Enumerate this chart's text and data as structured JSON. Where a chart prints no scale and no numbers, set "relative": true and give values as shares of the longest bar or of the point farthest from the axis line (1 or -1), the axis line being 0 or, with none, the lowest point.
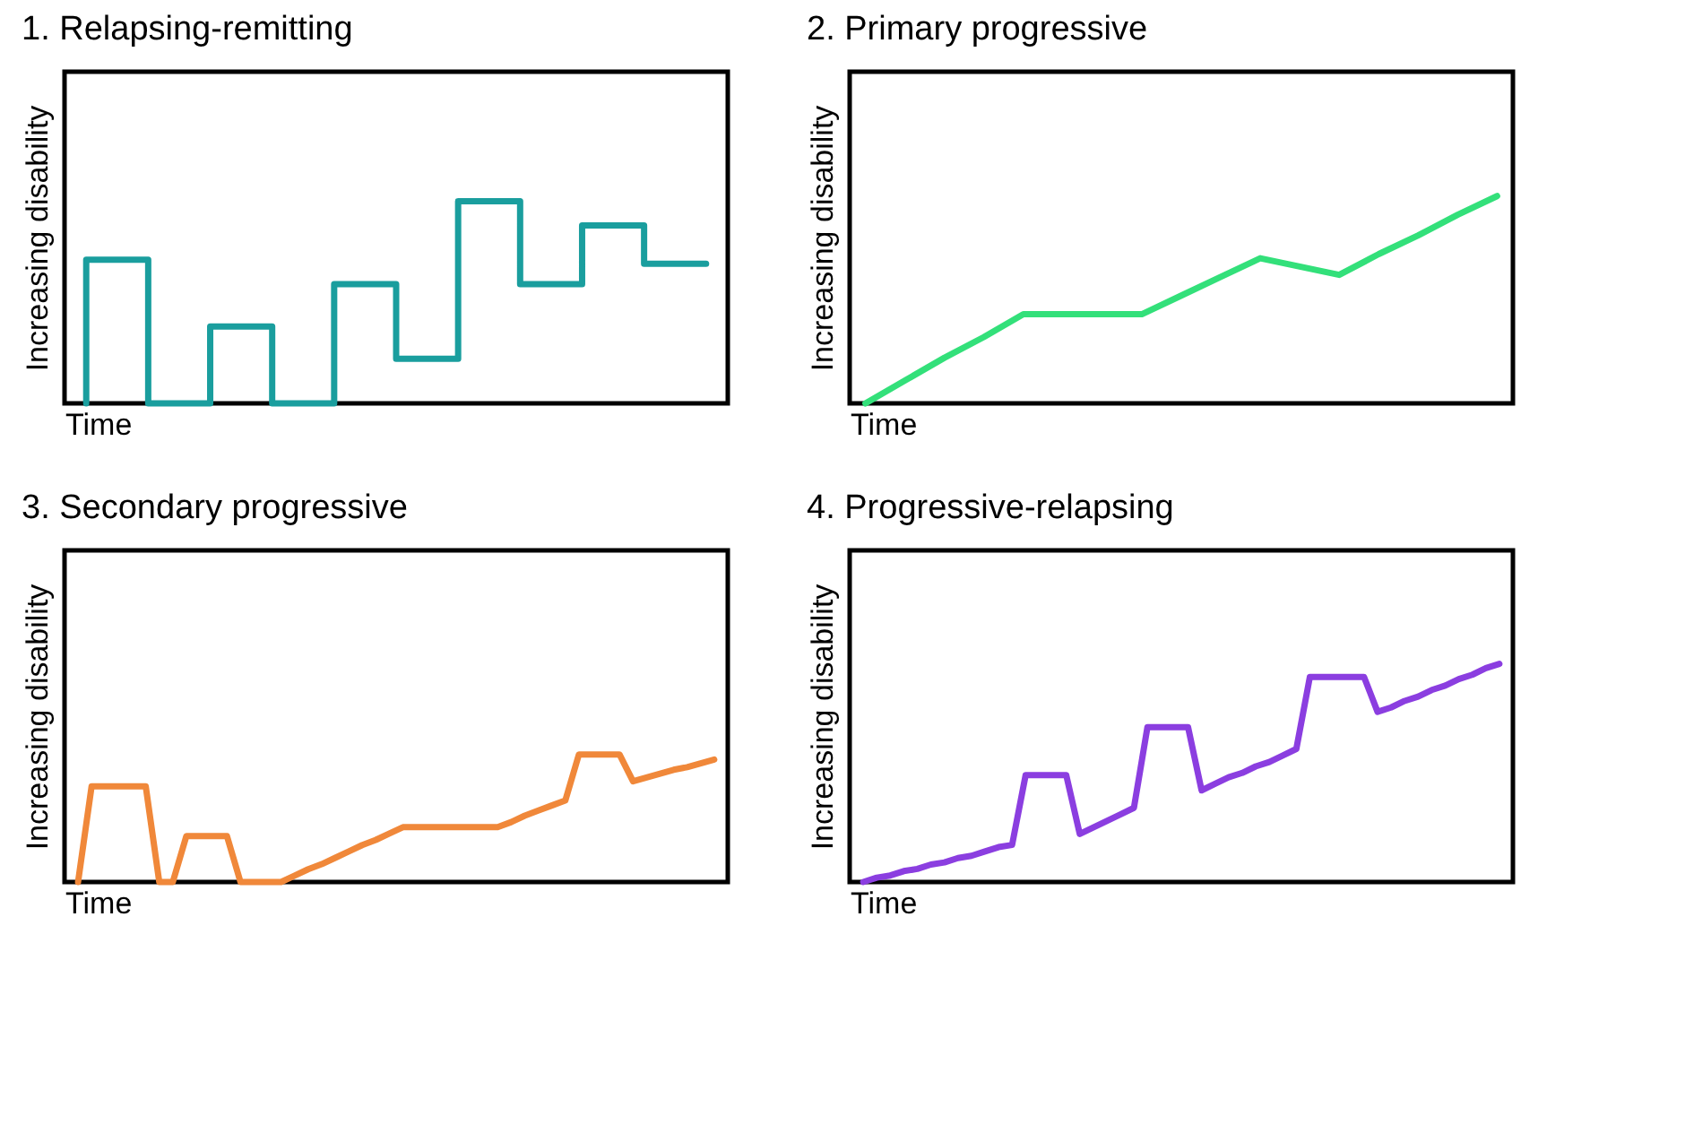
{
  "chart_data": [
    {
      "type": "step",
      "title": "1. Relapsing-remitting",
      "xlabel": "Time",
      "ylabel": "Increasing disability",
      "relative": true,
      "tick_labels": false,
      "categories": [
        null,
        null,
        null,
        null,
        null,
        null,
        null,
        null,
        null,
        null,
        null
      ],
      "series": [
        {
          "color": "#1a9e9e",
          "values": [
            0,
            0.71,
            0,
            0.38,
            0,
            0.59,
            0.22,
            1,
            0.59,
            0.88,
            0.69
          ]
        }
      ]
    },
    {
      "type": "line",
      "title": "2. Primary progressive",
      "xlabel": "Time",
      "ylabel": "Increasing disability",
      "relative": true,
      "tick_labels": false,
      "categories": [
        null,
        null,
        null,
        null,
        null,
        null,
        null,
        null,
        null,
        null,
        null,
        null,
        null,
        null,
        null,
        null,
        null
      ],
      "series": [
        {
          "color": "#33e07a",
          "values": [
            0,
            0.11,
            0.22,
            0.32,
            0.43,
            0.43,
            0.43,
            0.43,
            0.52,
            0.61,
            0.7,
            0.66,
            0.62,
            0.72,
            0.81,
            0.91,
            1
          ]
        }
      ]
    },
    {
      "type": "line",
      "title": "3. Secondary progressive",
      "xlabel": "Time",
      "ylabel": "Increasing disability",
      "relative": true,
      "tick_labels": false,
      "categories": [
        null,
        null,
        null,
        null,
        null,
        null,
        null,
        null,
        null,
        null,
        null,
        null,
        null,
        null,
        null,
        null,
        null,
        null,
        null,
        null,
        null,
        null,
        null,
        null,
        null,
        null,
        null,
        null,
        null,
        null,
        null,
        null,
        null,
        null,
        null,
        null,
        null,
        null,
        null,
        null,
        null,
        null,
        null,
        null,
        null,
        null,
        null,
        null
      ],
      "series": [
        {
          "color": "#f0883a",
          "values": [
            0,
            0.75,
            0.75,
            0.75,
            0.75,
            0.75,
            0,
            0,
            0.36,
            0.36,
            0.36,
            0.36,
            0,
            0,
            0,
            0,
            0.05,
            0.1,
            0.14,
            0.19,
            0.24,
            0.29,
            0.33,
            0.38,
            0.43,
            0.43,
            0.43,
            0.43,
            0.43,
            0.43,
            0.43,
            0.43,
            0.47,
            0.52,
            0.56,
            0.6,
            0.64,
            1,
            1,
            1,
            1,
            0.79,
            0.82,
            0.85,
            0.88,
            0.9,
            0.93,
            0.96
          ]
        }
      ]
    },
    {
      "type": "line",
      "title": "4. Progressive-relapsing",
      "xlabel": "Time",
      "ylabel": "Increasing disability",
      "relative": true,
      "tick_labels": false,
      "categories": [
        null,
        null,
        null,
        null,
        null,
        null,
        null,
        null,
        null,
        null,
        null,
        null,
        null,
        null,
        null,
        null,
        null,
        null,
        null,
        null,
        null,
        null,
        null,
        null,
        null,
        null,
        null,
        null,
        null,
        null,
        null,
        null,
        null,
        null,
        null,
        null,
        null,
        null,
        null,
        null,
        null,
        null,
        null,
        null,
        null,
        null,
        null,
        null
      ],
      "series": [
        {
          "color": "#8b3ee0",
          "values": [
            0,
            0.02,
            0.03,
            0.05,
            0.06,
            0.08,
            0.09,
            0.11,
            0.12,
            0.14,
            0.16,
            0.17,
            0.49,
            0.49,
            0.49,
            0.49,
            0.22,
            0.25,
            0.28,
            0.31,
            0.34,
            0.71,
            0.71,
            0.71,
            0.71,
            0.42,
            0.45,
            0.48,
            0.5,
            0.53,
            0.55,
            0.58,
            0.61,
            0.94,
            0.94,
            0.94,
            0.94,
            0.94,
            0.78,
            0.8,
            0.83,
            0.85,
            0.88,
            0.9,
            0.93,
            0.95,
            0.98,
            1
          ]
        }
      ]
    }
  ]
}
